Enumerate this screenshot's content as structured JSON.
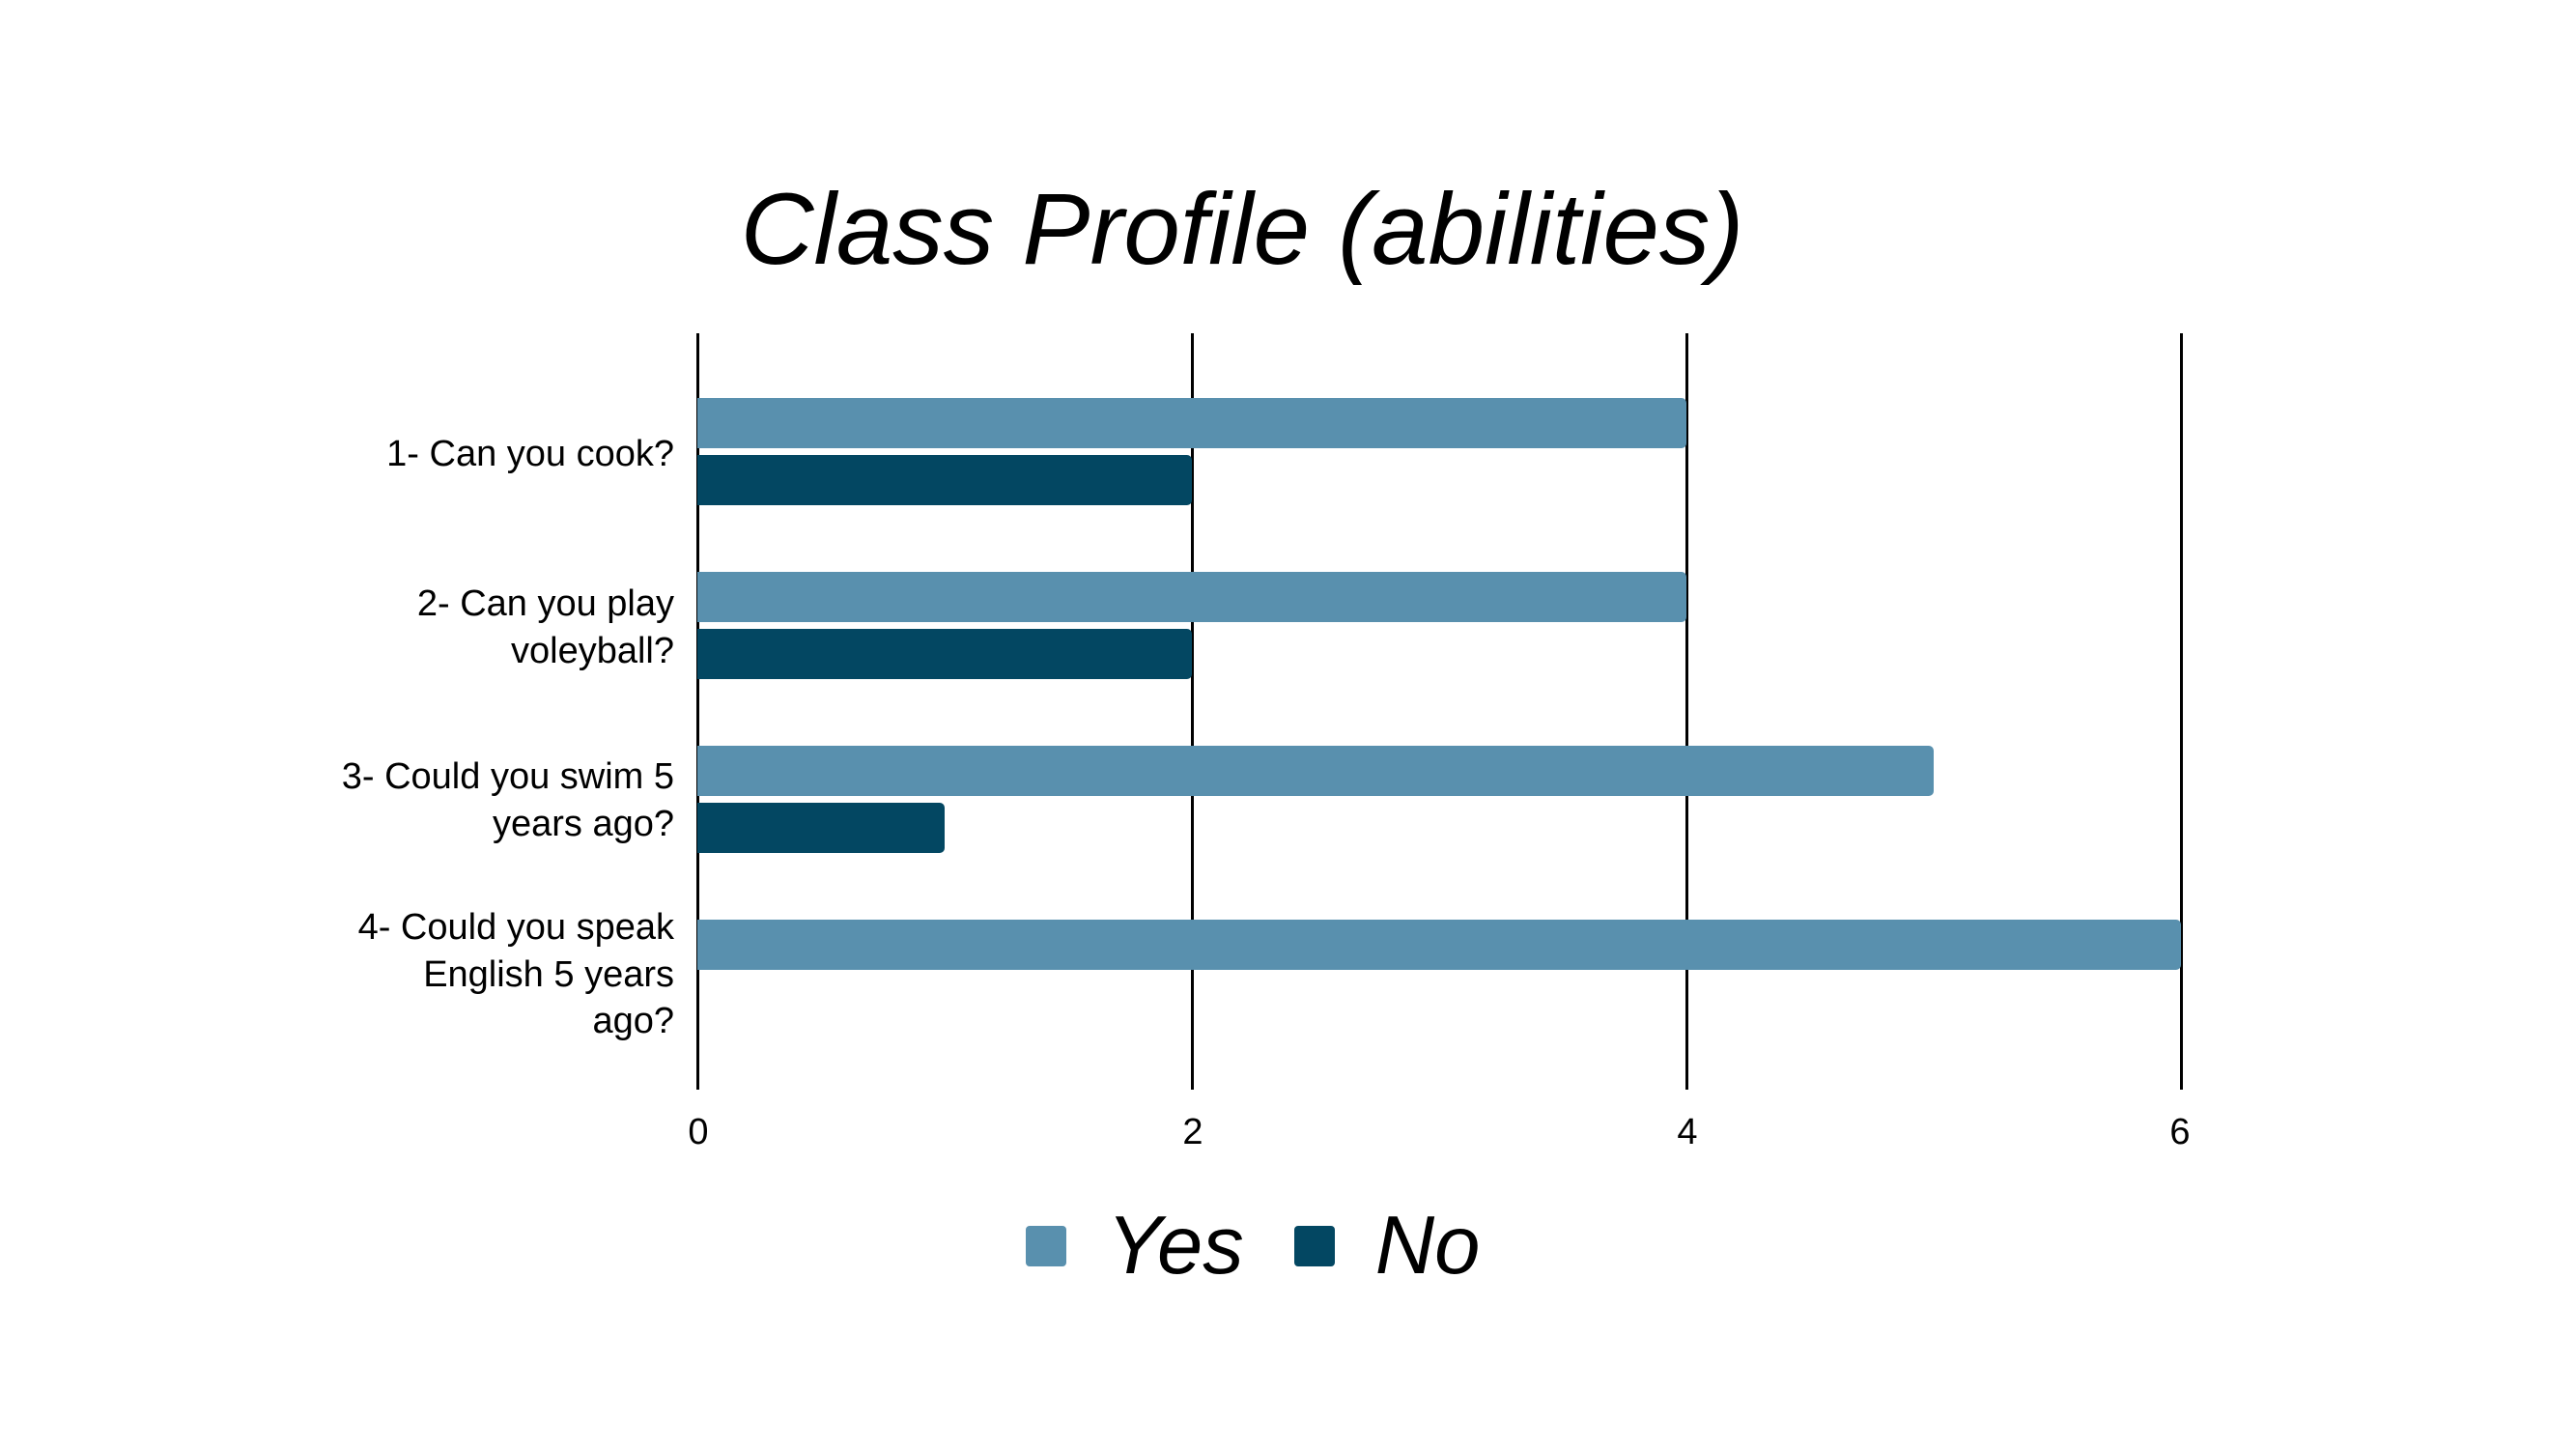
{
  "title": "Class Profile (abilities)",
  "colors": {
    "yes": "#5990ae",
    "no": "#034762",
    "grid": "#000000",
    "background": "#ffffff"
  },
  "axis": {
    "ticks": [
      {
        "value": 0,
        "label": "0"
      },
      {
        "value": 2,
        "label": "2"
      },
      {
        "value": 4,
        "label": "4"
      },
      {
        "value": 6,
        "label": "6"
      }
    ]
  },
  "categories": [
    {
      "lines": [
        "1- Can you cook?"
      ],
      "yes": 4,
      "no": 2
    },
    {
      "lines": [
        "2- Can you play",
        "voleyball?"
      ],
      "yes": 4,
      "no": 2
    },
    {
      "lines": [
        "3- Could you swim 5",
        "years ago?"
      ],
      "yes": 5,
      "no": 1
    },
    {
      "lines": [
        "4- Could you speak",
        "English 5 years",
        "ago?"
      ],
      "yes": 6,
      "no": 0
    }
  ],
  "legend": [
    {
      "label": "Yes",
      "color": "#5990ae"
    },
    {
      "label": "No",
      "color": "#034762"
    }
  ],
  "chart_data": {
    "type": "bar",
    "orientation": "horizontal",
    "title": "Class Profile (abilities)",
    "categories": [
      "1- Can you cook?",
      "2- Can you play voleyball?",
      "3- Could you swim 5 years ago?",
      "4- Could you speak English 5 years ago?"
    ],
    "series": [
      {
        "name": "Yes",
        "color": "#5990ae",
        "values": [
          4,
          4,
          5,
          6
        ]
      },
      {
        "name": "No",
        "color": "#034762",
        "values": [
          2,
          2,
          1,
          0
        ]
      }
    ],
    "xlabel": "",
    "ylabel": "",
    "xlim": [
      0,
      6
    ],
    "xticks": [
      0,
      2,
      4,
      6
    ],
    "grid": "vertical",
    "legend_position": "bottom"
  }
}
